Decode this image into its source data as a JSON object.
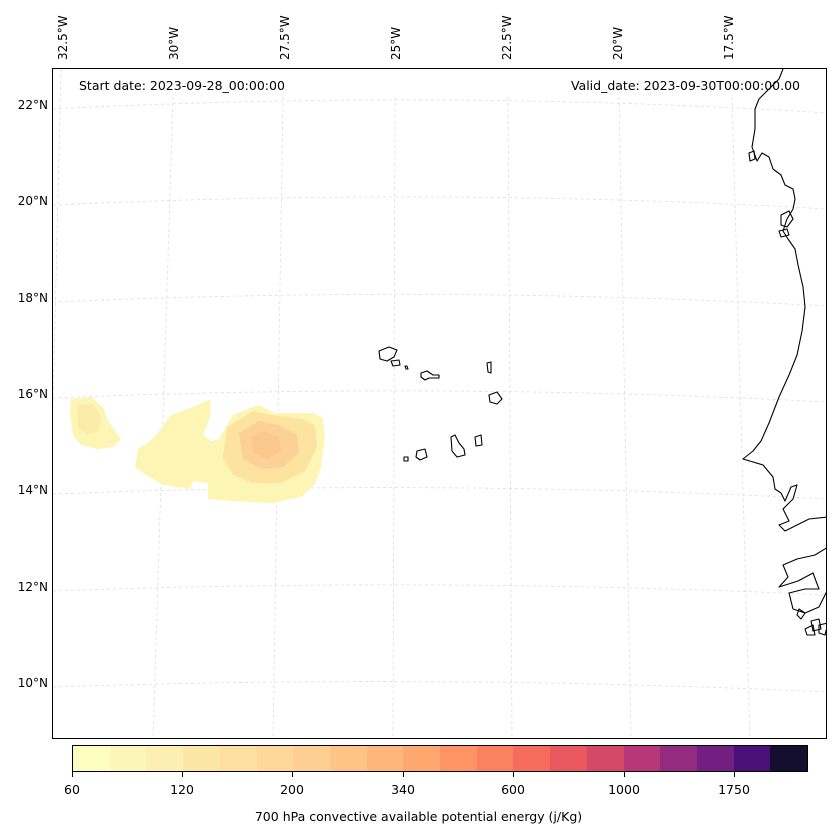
{
  "map": {
    "lon_labels": [
      "32.5°W",
      "30°W",
      "27.5°W",
      "25°W",
      "22.5°W",
      "20°W",
      "17.5°W"
    ],
    "lat_labels": [
      "22°N",
      "20°N",
      "18°N",
      "16°N",
      "14°N",
      "12°N",
      "10°N"
    ],
    "start_date": "Start date: 2023-09-28_00:00:00",
    "valid_date": "Valid_date: 2023-09-30T00:00:00.00",
    "gridline_color": "#dddddd",
    "coast_color": "#000000",
    "field_colors": {
      "low": "#fcf5b4",
      "mid": "#fde3a0",
      "high": "#fcd197"
    }
  },
  "colorbar": {
    "title": "700 hPa convective available potential energy (j/Kg)",
    "tick_labels": [
      "60",
      "120",
      "200",
      "340",
      "600",
      "1000",
      "1750"
    ],
    "colors": [
      "#fcfdbf",
      "#fcf7b9",
      "#fbefb1",
      "#fbe6a8",
      "#fde0a1",
      "#fed89b",
      "#fecf92",
      "#fec487",
      "#feb67b",
      "#fea76f",
      "#fd9464",
      "#fb815f",
      "#f66c5c",
      "#e9585f",
      "#d34a69",
      "#b73779",
      "#932b80",
      "#721f81",
      "#4a1078",
      "#140f2e"
    ]
  }
}
